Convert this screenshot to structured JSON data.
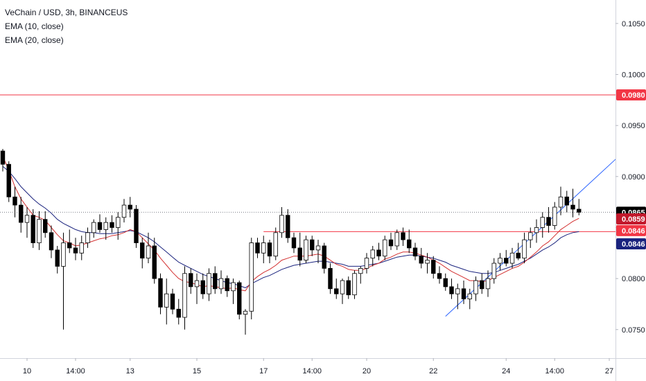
{
  "header": {
    "title": "VeChain / USD, 3h, BINANCEUS",
    "indicators": [
      "EMA (10, close)",
      "EMA (20, close)"
    ]
  },
  "colors": {
    "up_body": "#ffffff",
    "down_body": "#000000",
    "wick": "#000000",
    "ema10": "#d32f2f",
    "ema20": "#1a237e",
    "resistance_line": "#f23645",
    "trendline": "#2962ff",
    "last_price_badge": "#000000",
    "ema10_badge": "#c2182b",
    "ema20_badge": "#1a237e",
    "level_badge": "#f23645"
  },
  "chart_data": {
    "type": "candlestick",
    "symbol": "VeChain / USD",
    "timeframe": "3h",
    "exchange": "BINANCEUS",
    "ylim": [
      0.0722,
      0.1073
    ],
    "y_ticks": [
      "0.0750",
      "0.0800",
      "0.0850",
      "0.0900",
      "0.0950",
      "0.1000",
      "0.1050"
    ],
    "x_ticks": [
      "10",
      "14:00",
      "13",
      "15",
      "17",
      "14:00",
      "20",
      "22",
      "24",
      "14:00",
      "27"
    ],
    "x_tick_bars": [
      4,
      12,
      21,
      32,
      43,
      51,
      60,
      71,
      83,
      91,
      100
    ],
    "ohlc": [
      [
        0.0925,
        0.0927,
        0.0905,
        0.0912
      ],
      [
        0.0912,
        0.0915,
        0.0875,
        0.088
      ],
      [
        0.088,
        0.089,
        0.086,
        0.0872
      ],
      [
        0.0872,
        0.088,
        0.0845,
        0.0855
      ],
      [
        0.0855,
        0.087,
        0.084,
        0.0862
      ],
      [
        0.0862,
        0.0868,
        0.083,
        0.0835
      ],
      [
        0.0835,
        0.0866,
        0.0828,
        0.0858
      ],
      [
        0.0858,
        0.0866,
        0.084,
        0.0845
      ],
      [
        0.0845,
        0.0852,
        0.082,
        0.0828
      ],
      [
        0.0828,
        0.0832,
        0.0805,
        0.0812
      ],
      [
        0.0812,
        0.0845,
        0.075,
        0.0835
      ],
      [
        0.0835,
        0.0848,
        0.0825,
        0.083
      ],
      [
        0.083,
        0.084,
        0.0818,
        0.0825
      ],
      [
        0.0825,
        0.0842,
        0.0818,
        0.0835
      ],
      [
        0.0835,
        0.085,
        0.083,
        0.0845
      ],
      [
        0.0845,
        0.0858,
        0.084,
        0.0855
      ],
      [
        0.0855,
        0.0863,
        0.0845,
        0.0848
      ],
      [
        0.0848,
        0.086,
        0.0838,
        0.0855
      ],
      [
        0.0855,
        0.0862,
        0.0845,
        0.085
      ],
      [
        0.085,
        0.0865,
        0.0838,
        0.086
      ],
      [
        0.086,
        0.0878,
        0.0855,
        0.0872
      ],
      [
        0.0872,
        0.088,
        0.086,
        0.0868
      ],
      [
        0.0868,
        0.0872,
        0.083,
        0.0835
      ],
      [
        0.0835,
        0.084,
        0.081,
        0.082
      ],
      [
        0.082,
        0.0845,
        0.0815,
        0.0832
      ],
      [
        0.0832,
        0.084,
        0.0795,
        0.08
      ],
      [
        0.08,
        0.0805,
        0.0765,
        0.0772
      ],
      [
        0.0772,
        0.08,
        0.0755,
        0.0785
      ],
      [
        0.0785,
        0.079,
        0.0765,
        0.077
      ],
      [
        0.077,
        0.078,
        0.0755,
        0.0762
      ],
      [
        0.0762,
        0.0812,
        0.075,
        0.0805
      ],
      [
        0.0805,
        0.081,
        0.0785,
        0.0792
      ],
      [
        0.0792,
        0.0805,
        0.0775,
        0.0798
      ],
      [
        0.0798,
        0.0805,
        0.078,
        0.0785
      ],
      [
        0.0785,
        0.081,
        0.0778,
        0.0805
      ],
      [
        0.0805,
        0.0812,
        0.0785,
        0.079
      ],
      [
        0.079,
        0.0808,
        0.0785,
        0.08
      ],
      [
        0.08,
        0.0803,
        0.0782,
        0.0788
      ],
      [
        0.0788,
        0.08,
        0.0775,
        0.0796
      ],
      [
        0.0796,
        0.0798,
        0.076,
        0.0765
      ],
      [
        0.0765,
        0.077,
        0.0745,
        0.0768
      ],
      [
        0.0768,
        0.084,
        0.076,
        0.0835
      ],
      [
        0.0835,
        0.084,
        0.082,
        0.0825
      ],
      [
        0.0825,
        0.0842,
        0.0815,
        0.0835
      ],
      [
        0.0835,
        0.0838,
        0.0815,
        0.0822
      ],
      [
        0.0822,
        0.085,
        0.0818,
        0.0845
      ],
      [
        0.0845,
        0.087,
        0.084,
        0.0862
      ],
      [
        0.0862,
        0.0868,
        0.0835,
        0.084
      ],
      [
        0.084,
        0.0845,
        0.0825,
        0.083
      ],
      [
        0.083,
        0.0845,
        0.0812,
        0.0818
      ],
      [
        0.0818,
        0.0842,
        0.0815,
        0.0838
      ],
      [
        0.0838,
        0.0842,
        0.0822,
        0.0828
      ],
      [
        0.0828,
        0.0838,
        0.0815,
        0.0832
      ],
      [
        0.0832,
        0.0835,
        0.0805,
        0.081
      ],
      [
        0.081,
        0.0815,
        0.0785,
        0.079
      ],
      [
        0.079,
        0.08,
        0.078,
        0.0785
      ],
      [
        0.0785,
        0.08,
        0.0775,
        0.0798
      ],
      [
        0.0798,
        0.0802,
        0.078,
        0.0784
      ],
      [
        0.0784,
        0.0808,
        0.078,
        0.0805
      ],
      [
        0.0805,
        0.0812,
        0.0795,
        0.081
      ],
      [
        0.081,
        0.0825,
        0.0805,
        0.082
      ],
      [
        0.082,
        0.0832,
        0.0812,
        0.0828
      ],
      [
        0.0828,
        0.0835,
        0.0818,
        0.0822
      ],
      [
        0.0822,
        0.0842,
        0.0818,
        0.0838
      ],
      [
        0.0838,
        0.0845,
        0.0828,
        0.0832
      ],
      [
        0.0832,
        0.0848,
        0.0828,
        0.0845
      ],
      [
        0.0845,
        0.085,
        0.0832,
        0.0838
      ],
      [
        0.0838,
        0.0848,
        0.0825,
        0.083
      ],
      [
        0.083,
        0.0835,
        0.0818,
        0.0822
      ],
      [
        0.0822,
        0.083,
        0.081,
        0.0815
      ],
      [
        0.0815,
        0.0825,
        0.0805,
        0.0818
      ],
      [
        0.0818,
        0.0822,
        0.08,
        0.0805
      ],
      [
        0.0805,
        0.0812,
        0.0795,
        0.08
      ],
      [
        0.08,
        0.0805,
        0.0788,
        0.0792
      ],
      [
        0.0792,
        0.08,
        0.078,
        0.0785
      ],
      [
        0.0785,
        0.0795,
        0.077,
        0.079
      ],
      [
        0.079,
        0.0798,
        0.0775,
        0.078
      ],
      [
        0.078,
        0.079,
        0.077,
        0.0785
      ],
      [
        0.0785,
        0.0802,
        0.0778,
        0.0798
      ],
      [
        0.0798,
        0.0805,
        0.0785,
        0.079
      ],
      [
        0.079,
        0.0808,
        0.0782,
        0.08
      ],
      [
        0.08,
        0.082,
        0.0795,
        0.0815
      ],
      [
        0.0815,
        0.0825,
        0.0808,
        0.082
      ],
      [
        0.082,
        0.0828,
        0.0812,
        0.0815
      ],
      [
        0.0815,
        0.083,
        0.081,
        0.0825
      ],
      [
        0.0825,
        0.0835,
        0.0818,
        0.082
      ],
      [
        0.082,
        0.0845,
        0.0815,
        0.0838
      ],
      [
        0.0838,
        0.085,
        0.083,
        0.0845
      ],
      [
        0.0845,
        0.0858,
        0.0835,
        0.085
      ],
      [
        0.085,
        0.0865,
        0.084,
        0.086
      ],
      [
        0.086,
        0.087,
        0.0845,
        0.0852
      ],
      [
        0.0852,
        0.0875,
        0.0848,
        0.087
      ],
      [
        0.087,
        0.089,
        0.0862,
        0.088
      ],
      [
        0.088,
        0.0886,
        0.0865,
        0.0872
      ],
      [
        0.0872,
        0.0888,
        0.086,
        0.0868
      ],
      [
        0.0868,
        0.0878,
        0.0862,
        0.0865
      ]
    ],
    "ema10": [
      0.092,
      0.0906,
      0.089,
      0.0878,
      0.087,
      0.0862,
      0.086,
      0.0857,
      0.085,
      0.0843,
      0.0837,
      0.0835,
      0.0832,
      0.0833,
      0.0835,
      0.0837,
      0.0839,
      0.084,
      0.0842,
      0.0843,
      0.0845,
      0.0848,
      0.0846,
      0.084,
      0.0834,
      0.0828,
      0.082,
      0.0813,
      0.0806,
      0.08,
      0.0797,
      0.0796,
      0.0794,
      0.0792,
      0.0793,
      0.0792,
      0.0791,
      0.079,
      0.0791,
      0.0789,
      0.0788,
      0.0797,
      0.0802,
      0.0806,
      0.0809,
      0.0813,
      0.0818,
      0.082,
      0.0822,
      0.0822,
      0.0822,
      0.0823,
      0.0824,
      0.0822,
      0.0818,
      0.0814,
      0.0812,
      0.0809,
      0.0808,
      0.0808,
      0.081,
      0.0813,
      0.0815,
      0.0819,
      0.0821,
      0.0824,
      0.0826,
      0.0826,
      0.0825,
      0.0823,
      0.0821,
      0.0818,
      0.0815,
      0.0811,
      0.0807,
      0.0804,
      0.0801,
      0.0798,
      0.0798,
      0.0797,
      0.0798,
      0.0801,
      0.0804,
      0.0807,
      0.081,
      0.0812,
      0.0816,
      0.0821,
      0.0826,
      0.0832,
      0.0836,
      0.0842,
      0.0848,
      0.0852,
      0.0856,
      0.0859
    ],
    "ema20": [
      0.091,
      0.0905,
      0.0898,
      0.089,
      0.0884,
      0.0878,
      0.0873,
      0.0869,
      0.0864,
      0.0858,
      0.0854,
      0.0851,
      0.0848,
      0.0846,
      0.0845,
      0.0845,
      0.0844,
      0.0844,
      0.0844,
      0.0845,
      0.0846,
      0.0847,
      0.0846,
      0.0843,
      0.084,
      0.0836,
      0.0831,
      0.0826,
      0.0821,
      0.0816,
      0.0813,
      0.081,
      0.0807,
      0.0804,
      0.0802,
      0.08,
      0.0798,
      0.0796,
      0.0795,
      0.0793,
      0.0791,
      0.0795,
      0.0798,
      0.0801,
      0.0803,
      0.0806,
      0.0809,
      0.0811,
      0.0813,
      0.0814,
      0.0815,
      0.0816,
      0.0817,
      0.0817,
      0.0816,
      0.0815,
      0.0814,
      0.0812,
      0.0812,
      0.0812,
      0.0813,
      0.0814,
      0.0815,
      0.0817,
      0.0819,
      0.0821,
      0.0822,
      0.0823,
      0.0823,
      0.0822,
      0.0821,
      0.082,
      0.0818,
      0.0816,
      0.0813,
      0.0811,
      0.0809,
      0.0807,
      0.0806,
      0.0805,
      0.0805,
      0.0806,
      0.0808,
      0.081,
      0.0812,
      0.0814,
      0.0817,
      0.082,
      0.0824,
      0.0828,
      0.0831,
      0.0835,
      0.084,
      0.0843,
      0.0845,
      0.0846
    ],
    "resistance_level": {
      "value": 0.098,
      "label": "0.0980"
    },
    "support_segment": {
      "value": 0.0846,
      "from_bar": 43,
      "to_bar": 110
    },
    "trendline": {
      "from_bar": 73,
      "from_price": 0.0763,
      "to_bar": 118,
      "to_price": 0.101
    },
    "last_price": {
      "value": 0.0865,
      "label": "0.0865"
    },
    "ema10_last": {
      "value": 0.0859,
      "label": "0.0859"
    },
    "level_badge": {
      "value": 0.0846,
      "label": "0.0846"
    },
    "ema20_last": {
      "value": 0.0846,
      "label": "0.0846"
    },
    "grid": false
  }
}
